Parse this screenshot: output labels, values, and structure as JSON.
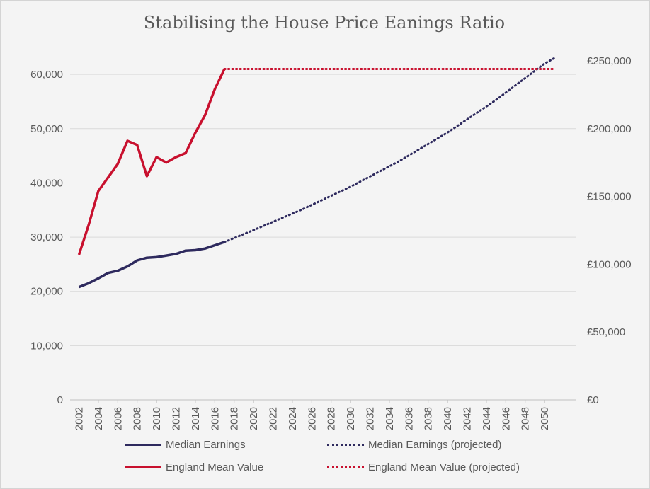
{
  "chart_data": {
    "type": "line",
    "title": "Stabilising the House Price Eanings Ratio",
    "xlabel": "",
    "ylabel": "",
    "xlim": [
      2002,
      2051
    ],
    "ylim": [
      0,
      62500
    ],
    "y2lim": [
      0,
      250000
    ],
    "grid": true,
    "legend_position": "bottom",
    "x_ticks": [
      "2002",
      "2004",
      "2006",
      "2008",
      "2010",
      "2012",
      "2014",
      "2016",
      "2018",
      "2020",
      "2022",
      "2024",
      "2026",
      "2028",
      "2030",
      "2032",
      "2034",
      "2036",
      "2038",
      "2040",
      "2042",
      "2044",
      "2046",
      "2048",
      "2050"
    ],
    "y_ticks": [
      "0",
      "10,000",
      "20,000",
      "30,000",
      "40,000",
      "50,000",
      "60,000"
    ],
    "y2_ticks": [
      "£0",
      "£50,000",
      "£100,000",
      "£150,000",
      "£200,000",
      "£250,000"
    ],
    "series": [
      {
        "name": "Median Earnings",
        "axis": "left",
        "color": "#2e2a5e",
        "style": "solid",
        "x": [
          2002,
          2003,
          2004,
          2005,
          2006,
          2007,
          2008,
          2009,
          2010,
          2011,
          2012,
          2013,
          2014,
          2015,
          2016,
          2017
        ],
        "values": [
          20800,
          21500,
          22400,
          23400,
          23800,
          24600,
          25700,
          26200,
          26300,
          26600,
          26900,
          27500,
          27600,
          27900,
          28500,
          29100
        ]
      },
      {
        "name": "England Mean Value",
        "axis": "right",
        "color": "#c8102e",
        "style": "solid",
        "x": [
          2002,
          2003,
          2004,
          2005,
          2006,
          2007,
          2008,
          2009,
          2010,
          2011,
          2012,
          2013,
          2014,
          2015,
          2016,
          2017
        ],
        "values": [
          107000,
          129000,
          154000,
          164000,
          174000,
          191000,
          188000,
          165000,
          179000,
          175000,
          179000,
          182000,
          197000,
          210000,
          229000,
          244000
        ]
      },
      {
        "name": "Median Earnings (projected)",
        "axis": "left",
        "color": "#2e2a5e",
        "style": "dotted",
        "x": [
          2017,
          2020,
          2025,
          2030,
          2035,
          2040,
          2045,
          2050,
          2051
        ],
        "values": [
          29100,
          31300,
          35100,
          39300,
          44000,
          49300,
          55300,
          62000,
          63000
        ]
      },
      {
        "name": "England Mean Value (projected)",
        "axis": "right",
        "color": "#c8102e",
        "style": "dotted",
        "x": [
          2017,
          2051
        ],
        "values": [
          244000,
          244000
        ]
      }
    ]
  }
}
